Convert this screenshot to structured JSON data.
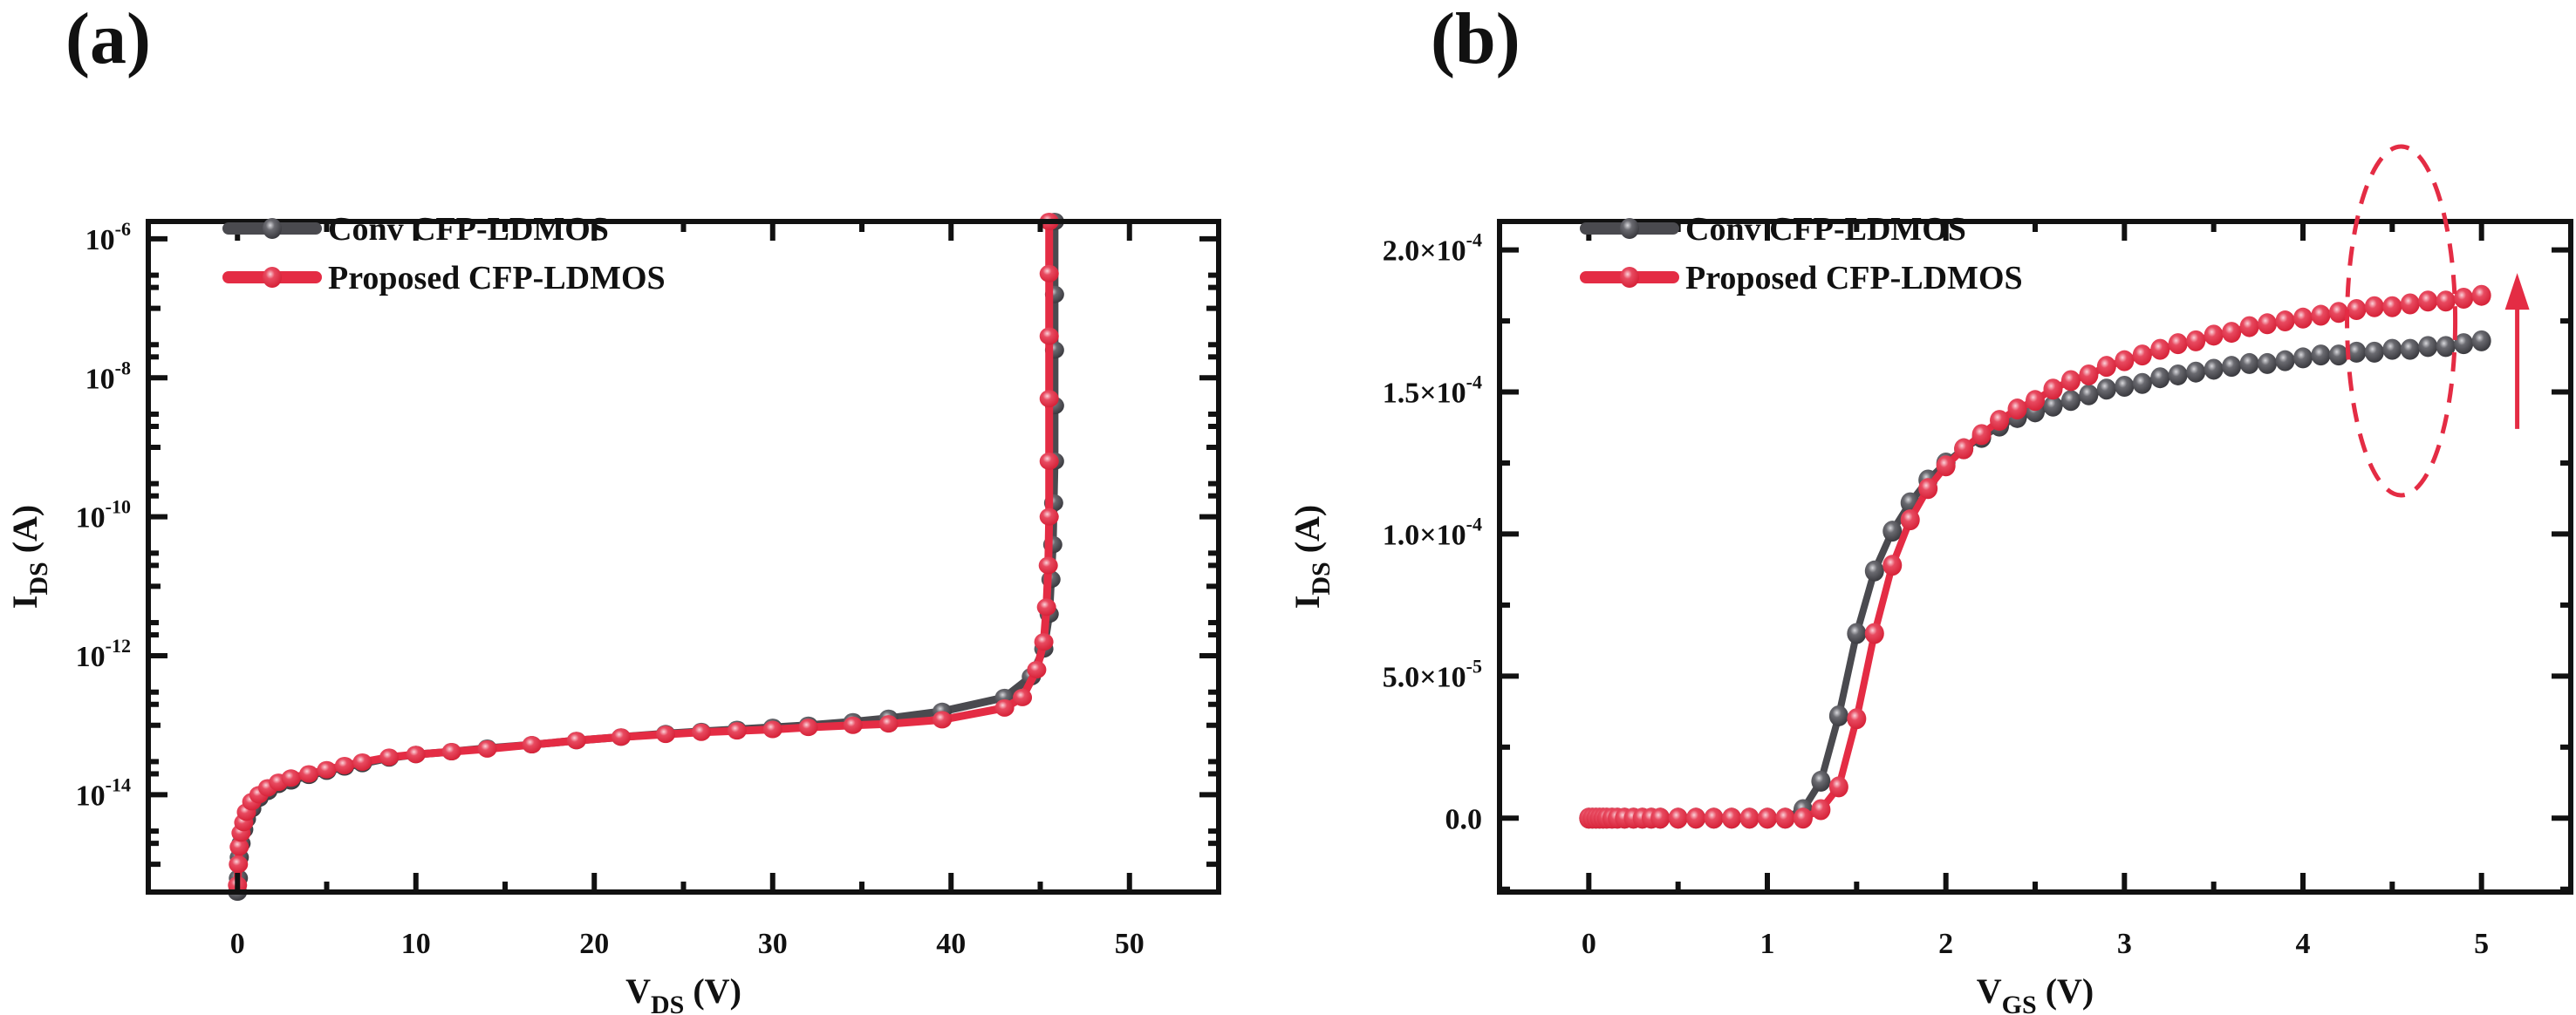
{
  "chart_data": [
    {
      "panel_label": "(a)",
      "type": "line",
      "title": "",
      "xlabel": "V",
      "xlabel_sub": "DS",
      "xlabel_unit": " (V)",
      "ylabel": "I",
      "ylabel_sub": "DS",
      "ylabel_unit": " (A)",
      "xlim": [
        -5,
        55
      ],
      "ylim_log10": [
        -15.4,
        -5.75
      ],
      "yscale": "log",
      "xticks": [
        0,
        10,
        20,
        30,
        40,
        50
      ],
      "yticks_exp": [
        -6,
        -8,
        -10,
        -12,
        -14
      ],
      "legend_position": "top-left",
      "series": [
        {
          "name": "Conv CFP-LDMOS",
          "color": "#4a4a4f",
          "x": [
            0,
            0.05,
            0.1,
            0.2,
            0.35,
            0.5,
            0.8,
            1.2,
            1.7,
            2.3,
            3,
            4,
            5,
            6,
            7,
            8.5,
            10,
            12,
            14,
            16.5,
            19,
            21.5,
            24,
            26,
            28,
            30,
            32,
            34.5,
            36.5,
            39.5,
            43,
            44.5,
            45.2,
            45.5,
            45.6,
            45.7,
            45.75,
            45.8,
            45.8,
            45.8,
            45.8,
            45.8
          ],
          "y_log10": [
            -15.5,
            -15.2,
            -14.9,
            -14.7,
            -14.5,
            -14.35,
            -14.2,
            -14.05,
            -13.95,
            -13.85,
            -13.8,
            -13.72,
            -13.66,
            -13.6,
            -13.55,
            -13.47,
            -13.42,
            -13.38,
            -13.33,
            -13.28,
            -13.22,
            -13.17,
            -13.12,
            -13.09,
            -13.06,
            -13.03,
            -13.0,
            -12.95,
            -12.9,
            -12.8,
            -12.6,
            -12.3,
            -11.9,
            -11.4,
            -10.9,
            -10.4,
            -9.8,
            -9.2,
            -8.4,
            -7.6,
            -6.8,
            -5.75
          ]
        },
        {
          "name": "Proposed CFP-LDMOS",
          "color": "#e42c44",
          "x": [
            0,
            0,
            0.05,
            0.1,
            0.2,
            0.35,
            0.5,
            0.8,
            1.2,
            1.7,
            2.3,
            3,
            4,
            5,
            6,
            7,
            8.5,
            10,
            12,
            14,
            16.5,
            19,
            21.5,
            24,
            26,
            28,
            30,
            32,
            34.5,
            36.5,
            39.5,
            43,
            44,
            44.8,
            45.2,
            45.35,
            45.45,
            45.5,
            45.5,
            45.5,
            45.5,
            45.5,
            45.5
          ],
          "y_log10": [
            -16,
            -15.3,
            -15.0,
            -14.75,
            -14.55,
            -14.4,
            -14.25,
            -14.1,
            -14.0,
            -13.9,
            -13.82,
            -13.76,
            -13.7,
            -13.64,
            -13.58,
            -13.53,
            -13.46,
            -13.42,
            -13.38,
            -13.34,
            -13.28,
            -13.22,
            -13.17,
            -13.13,
            -13.1,
            -13.08,
            -13.06,
            -13.03,
            -13.0,
            -12.98,
            -12.92,
            -12.75,
            -12.6,
            -12.2,
            -11.8,
            -11.3,
            -10.7,
            -10.0,
            -9.2,
            -8.3,
            -7.4,
            -6.5,
            -5.75
          ]
        }
      ]
    },
    {
      "panel_label": "(b)",
      "type": "line",
      "title": "",
      "xlabel": "V",
      "xlabel_sub": "GS",
      "xlabel_unit": " (V)",
      "ylabel": "I",
      "ylabel_sub": "DS",
      "ylabel_unit": " (A)",
      "xlim": [
        -0.5,
        5.5
      ],
      "ylim": [
        -2.6e-05,
        0.00021
      ],
      "xticks": [
        0,
        1,
        2,
        3,
        4,
        5
      ],
      "yticks": [
        {
          "value": 0,
          "mant": "0.0",
          "exp": ""
        },
        {
          "value": 5e-05,
          "mant": "5.0×10",
          "exp": "-5"
        },
        {
          "value": 0.0001,
          "mant": "1.0×10",
          "exp": "-4"
        },
        {
          "value": 0.00015,
          "mant": "1.5×10",
          "exp": "-4"
        },
        {
          "value": 0.0002,
          "mant": "2.0×10",
          "exp": "-4"
        }
      ],
      "legend_position": "top-left",
      "annotations": [
        {
          "type": "dashed-ellipse",
          "center_x": 4.55,
          "center_y": 0.000175,
          "color": "#e42c44"
        },
        {
          "type": "arrow-up",
          "x": 5.2,
          "y_from": 0.000137,
          "y_to": 0.00019,
          "color": "#e42c44"
        }
      ],
      "series": [
        {
          "name": "Conv CFP-LDMOS",
          "color": "#4a4a4f",
          "x": [
            0,
            0.02,
            0.04,
            0.06,
            0.08,
            0.1,
            0.13,
            0.16,
            0.2,
            0.25,
            0.3,
            0.35,
            0.4,
            0.5,
            0.6,
            0.7,
            0.8,
            0.9,
            1.0,
            1.1,
            1.2,
            1.3,
            1.4,
            1.5,
            1.6,
            1.7,
            1.8,
            1.9,
            2.0,
            2.1,
            2.2,
            2.3,
            2.4,
            2.5,
            2.6,
            2.7,
            2.8,
            2.9,
            3.0,
            3.1,
            3.2,
            3.3,
            3.4,
            3.5,
            3.6,
            3.7,
            3.8,
            3.9,
            4.0,
            4.1,
            4.2,
            4.3,
            4.4,
            4.5,
            4.6,
            4.7,
            4.8,
            4.9,
            5.0
          ],
          "y": [
            0,
            0,
            0,
            0,
            0,
            0,
            0,
            0,
            0,
            0,
            0,
            0,
            0,
            0,
            0,
            0,
            0,
            0,
            0,
            0,
            3e-06,
            1.3e-05,
            3.6e-05,
            6.5e-05,
            8.7e-05,
            0.000101,
            0.000111,
            0.000119,
            0.000125,
            0.00013,
            0.000134,
            0.000138,
            0.000141,
            0.000143,
            0.000145,
            0.000147,
            0.000149,
            0.000151,
            0.000152,
            0.000153,
            0.000155,
            0.000156,
            0.000157,
            0.000158,
            0.000159,
            0.00016,
            0.00016,
            0.000161,
            0.000162,
            0.000163,
            0.000163,
            0.000164,
            0.000164,
            0.000165,
            0.000165,
            0.000166,
            0.000166,
            0.000167,
            0.000168
          ]
        },
        {
          "name": "Proposed CFP-LDMOS",
          "color": "#e42c44",
          "x": [
            0,
            0.02,
            0.04,
            0.06,
            0.08,
            0.1,
            0.13,
            0.16,
            0.2,
            0.25,
            0.3,
            0.35,
            0.4,
            0.5,
            0.6,
            0.7,
            0.8,
            0.9,
            1.0,
            1.1,
            1.2,
            1.3,
            1.4,
            1.5,
            1.6,
            1.7,
            1.8,
            1.9,
            2.0,
            2.1,
            2.2,
            2.3,
            2.4,
            2.5,
            2.6,
            2.7,
            2.8,
            2.9,
            3.0,
            3.1,
            3.2,
            3.3,
            3.4,
            3.5,
            3.6,
            3.7,
            3.8,
            3.9,
            4.0,
            4.1,
            4.2,
            4.3,
            4.4,
            4.5,
            4.6,
            4.7,
            4.8,
            4.9,
            5.0
          ],
          "y": [
            0,
            0,
            0,
            0,
            0,
            0,
            0,
            0,
            0,
            0,
            0,
            0,
            0,
            0,
            0,
            0,
            0,
            0,
            0,
            0,
            0,
            3e-06,
            1.1e-05,
            3.5e-05,
            6.5e-05,
            8.9e-05,
            0.000105,
            0.000116,
            0.000124,
            0.00013,
            0.000135,
            0.00014,
            0.000144,
            0.000147,
            0.000151,
            0.000154,
            0.000156,
            0.000159,
            0.000161,
            0.000163,
            0.000165,
            0.000167,
            0.000168,
            0.00017,
            0.000171,
            0.000173,
            0.000174,
            0.000175,
            0.000176,
            0.000177,
            0.000178,
            0.000179,
            0.00018,
            0.00018,
            0.000181,
            0.000182,
            0.000182,
            0.000183,
            0.000184
          ]
        }
      ]
    }
  ]
}
